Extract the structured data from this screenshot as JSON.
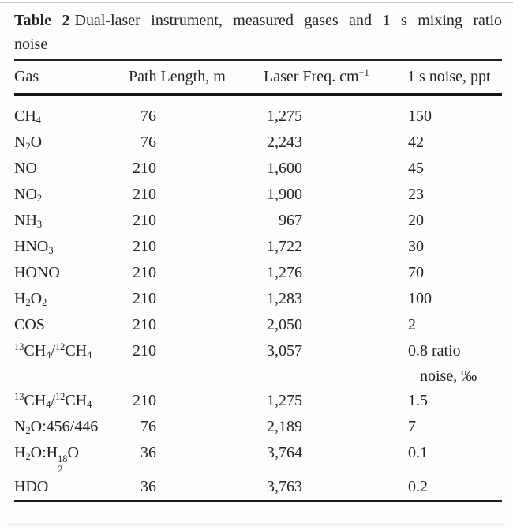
{
  "caption": {
    "label": "Table 2",
    "line1": "Dual-laser instrument, measured gases and 1 s mixing ratio",
    "line2": "noise"
  },
  "table": {
    "columns": [
      "Gas",
      "Path Length, m",
      "Laser Freq. cm^{−1}",
      "1 s noise, ppt"
    ],
    "rows": [
      {
        "gas": "CH_{4}",
        "path": "76",
        "freq": "1,275",
        "noise": "150"
      },
      {
        "gas": "N_{2}O",
        "path": "76",
        "freq": "2,243",
        "noise": "42"
      },
      {
        "gas": "NO",
        "path": "210",
        "freq": "1,600",
        "noise": "45"
      },
      {
        "gas": "NO_{2}",
        "path": "210",
        "freq": "1,900",
        "noise": "23"
      },
      {
        "gas": "NH_{3}",
        "path": "210",
        "freq": "967",
        "noise": "20"
      },
      {
        "gas": "HNO_{3}",
        "path": "210",
        "freq": "1,722",
        "noise": "30"
      },
      {
        "gas": "HONO",
        "path": "210",
        "freq": "1,276",
        "noise": "70"
      },
      {
        "gas": "H_{2}O_{2}",
        "path": "210",
        "freq": "1,283",
        "noise": "100"
      },
      {
        "gas": "COS",
        "path": "210",
        "freq": "2,050",
        "noise": "2"
      },
      {
        "gas": "^{13}CH_{4}/^{12}CH_{4}",
        "path": "210",
        "freq": "3,057",
        "noise": "0.8 ratio",
        "noise_line2": "noise, ‰"
      },
      {
        "gas": "^{13}CH_{4}/^{12}CH_{4}",
        "path": "210",
        "freq": "1,275",
        "noise": "1.5"
      },
      {
        "gas": "N_{2}O:456/446",
        "path": "76",
        "freq": "2,189",
        "noise": "7"
      },
      {
        "gas": "H_{2}O:H~{18}{2}O",
        "path": "36",
        "freq": "3,764",
        "noise": "0.1"
      },
      {
        "gas": "HDO",
        "path": "36",
        "freq": "3,763",
        "noise": "0.2"
      }
    ]
  }
}
